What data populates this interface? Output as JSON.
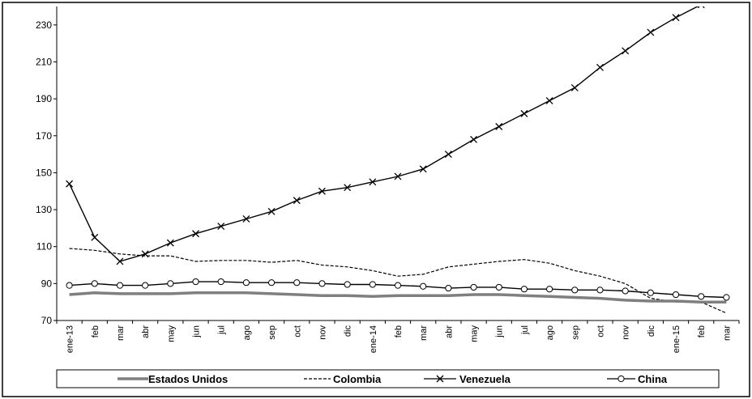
{
  "chart_data": {
    "type": "line",
    "title": "",
    "xlabel": "",
    "ylabel": "",
    "ylim": [
      70,
      240
    ],
    "yticks": [
      70,
      90,
      110,
      130,
      150,
      170,
      190,
      210,
      230
    ],
    "grid": false,
    "legend_position": "bottom",
    "categories": [
      "ene-13",
      "feb",
      "mar",
      "abr",
      "may",
      "jun",
      "jul",
      "ago",
      "sep",
      "oct",
      "nov",
      "dic",
      "ene-14",
      "feb",
      "mar",
      "abr",
      "may",
      "jun",
      "jul",
      "ago",
      "sep",
      "oct",
      "nov",
      "dic",
      "ene-15",
      "feb",
      "mar"
    ],
    "series": [
      {
        "name": "Estados Unidos",
        "style": "thick-gray",
        "color": "#7f7f7f",
        "values": [
          84,
          85,
          84.5,
          84.5,
          84.5,
          85,
          85,
          85,
          84.5,
          84,
          83.5,
          83.5,
          83,
          83.5,
          83.5,
          83.5,
          84,
          84,
          83.5,
          83,
          82.5,
          82,
          81,
          80.5,
          80.5,
          80,
          80
        ]
      },
      {
        "name": "Colombia",
        "style": "dashed",
        "color": "#000000",
        "values": [
          109,
          108,
          106,
          105,
          105,
          102,
          102.5,
          102.5,
          101.5,
          102.5,
          100,
          99,
          97,
          94,
          95,
          99,
          100.5,
          102,
          103,
          101,
          97,
          94,
          90,
          82,
          80,
          80,
          74
        ]
      },
      {
        "name": "Venezuela",
        "style": "x-marker",
        "color": "#000000",
        "values": [
          144,
          115,
          102,
          106,
          112,
          117,
          121,
          125,
          129,
          135,
          140,
          142,
          145,
          148,
          152,
          160,
          168,
          175,
          182,
          189,
          196,
          207,
          216,
          226,
          234,
          241,
          243
        ]
      },
      {
        "name": "China",
        "style": "circle-marker",
        "color": "#000000",
        "values": [
          89,
          90,
          89,
          89,
          90,
          91,
          91,
          90.5,
          90.5,
          90.5,
          90,
          89.5,
          89.5,
          89,
          88.5,
          87.5,
          88,
          88,
          87,
          87,
          86.5,
          86.5,
          86,
          85,
          84,
          83,
          82.5
        ]
      }
    ]
  }
}
